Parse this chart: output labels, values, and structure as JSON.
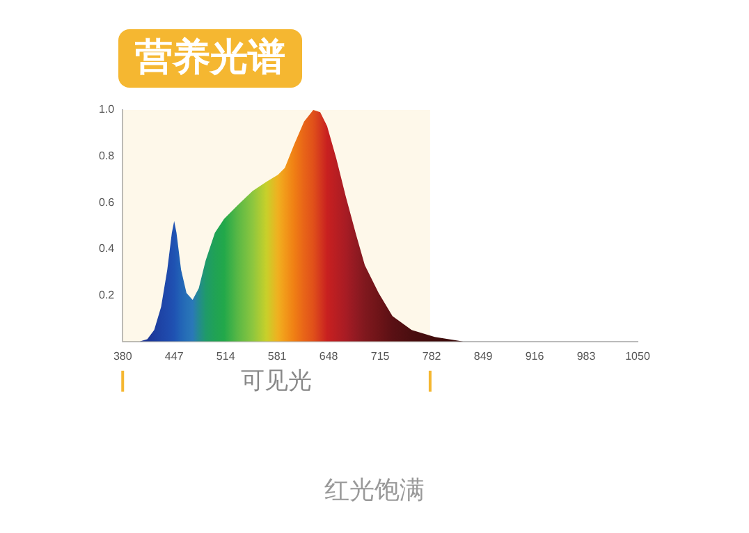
{
  "chart_data": {
    "type": "area",
    "title": "营养光谱",
    "x": [
      402,
      412,
      421,
      430,
      438,
      444,
      447,
      450,
      456,
      463,
      471,
      479,
      488,
      500,
      512,
      530,
      549,
      567,
      582,
      591,
      603,
      616,
      628,
      637,
      646,
      658,
      670,
      683,
      695,
      713,
      731,
      756,
      786,
      823
    ],
    "values": [
      0,
      0.01,
      0.05,
      0.15,
      0.31,
      0.47,
      0.52,
      0.47,
      0.31,
      0.21,
      0.18,
      0.23,
      0.35,
      0.47,
      0.53,
      0.59,
      0.65,
      0.69,
      0.72,
      0.75,
      0.85,
      0.95,
      1.0,
      0.99,
      0.93,
      0.79,
      0.63,
      0.47,
      0.33,
      0.21,
      0.11,
      0.05,
      0.02,
      0
    ],
    "colors": [
      "#1a2f8f",
      "#1c3596",
      "#1d3c9e",
      "#1e44a6",
      "#1f4aac",
      "#1f4fb0",
      "#1f52b2",
      "#2058b4",
      "#2264b6",
      "#266fb7",
      "#2a78b8",
      "#248a90",
      "#1f9a6a",
      "#20a255",
      "#22a84a",
      "#5ab845",
      "#8cc63f",
      "#c8d02a",
      "#f0b020",
      "#f29a1a",
      "#f07f14",
      "#e86418",
      "#e0501a",
      "#d4381e",
      "#c82020",
      "#b81e22",
      "#a81c24",
      "#921a22",
      "#80181e",
      "#6e1418",
      "#5a1014",
      "#4a0e10",
      "#400c0c",
      "#3a0a0a"
    ],
    "xlim": [
      380,
      1050
    ],
    "xticks": [
      380,
      447,
      514,
      581,
      648,
      715,
      782,
      849,
      916,
      983,
      1050
    ],
    "ylim": [
      0,
      1
    ],
    "yticks": [
      0.2,
      0.4,
      0.6,
      0.8,
      {
        "value": 1,
        "label": "1.0"
      }
    ],
    "grid": false,
    "legend": false,
    "marker": "none",
    "bands": [
      {
        "axis": "x",
        "from": 380,
        "to": 780,
        "label": "可见光",
        "color": "#f5b731"
      }
    ],
    "annotations": [
      "红光饱满"
    ]
  }
}
